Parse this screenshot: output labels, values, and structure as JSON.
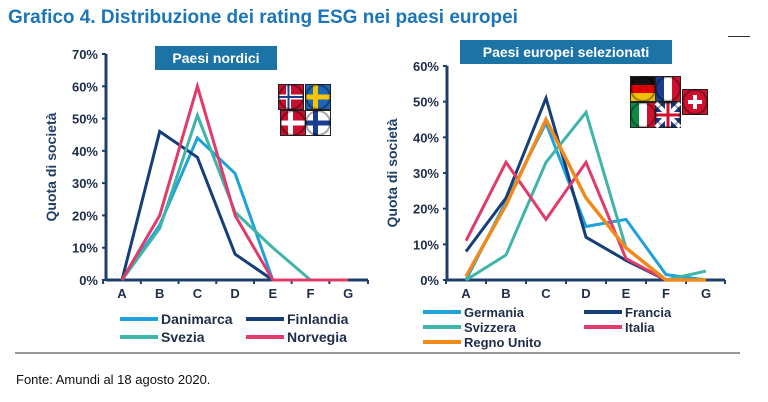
{
  "title": "Grafico 4. Distribuzione dei rating ESG nei paesi europei",
  "source": "Fonte: Amundi al 18 agosto 2020.",
  "chart_data": [
    {
      "type": "line",
      "title": "Paesi nordici",
      "ylabel": "Quota di società",
      "categories": [
        "A",
        "B",
        "C",
        "D",
        "E",
        "F",
        "G"
      ],
      "ylim": [
        0,
        70
      ],
      "yticks": [
        "0%",
        "10%",
        "20%",
        "30%",
        "40%",
        "50%",
        "60%",
        "70%"
      ],
      "legend": "bottom",
      "flags": [
        "Norway",
        "Sweden",
        "Denmark",
        "Finland"
      ],
      "series": [
        {
          "name": "Danimarca",
          "color": "#1ea1dc",
          "values": [
            0,
            17,
            44,
            33,
            0,
            null,
            null
          ]
        },
        {
          "name": "Finlandia",
          "color": "#163f7a",
          "values": [
            0,
            46,
            38,
            8,
            0,
            null,
            null
          ]
        },
        {
          "name": "Svezia",
          "color": "#3fb4a8",
          "values": [
            0,
            16,
            51,
            21,
            10,
            0,
            null
          ]
        },
        {
          "name": "Norvegia",
          "color": "#e03b6a",
          "values": [
            0,
            20,
            60,
            20,
            0,
            0,
            0
          ]
        }
      ]
    },
    {
      "type": "line",
      "title": "Paesi europei selezionati",
      "ylabel": "Quota di società",
      "categories": [
        "A",
        "B",
        "C",
        "D",
        "E",
        "F",
        "G"
      ],
      "ylim": [
        0,
        60
      ],
      "yticks": [
        "0%",
        "10%",
        "20%",
        "30%",
        "40%",
        "50%",
        "60%"
      ],
      "legend": "bottom",
      "flags": [
        "Germany",
        "France",
        "Switzerland",
        "Italy",
        "United Kingdom"
      ],
      "series": [
        {
          "name": "Germania",
          "color": "#1ea1dc",
          "values": [
            0,
            22,
            44,
            15,
            17,
            1.5,
            0
          ]
        },
        {
          "name": "Francia",
          "color": "#163f7a",
          "values": [
            8,
            23,
            51,
            12,
            5.5,
            0,
            null
          ]
        },
        {
          "name": "Svizzera",
          "color": "#3fb4a8",
          "values": [
            0,
            7,
            33,
            47,
            9,
            0,
            2.5
          ]
        },
        {
          "name": "Italia",
          "color": "#e03b6a",
          "values": [
            11,
            33,
            17,
            33,
            6,
            0,
            null
          ]
        },
        {
          "name": "Regno Unito",
          "color": "#f08a1c",
          "values": [
            1,
            21,
            45,
            23,
            9,
            0,
            0
          ]
        }
      ]
    }
  ]
}
